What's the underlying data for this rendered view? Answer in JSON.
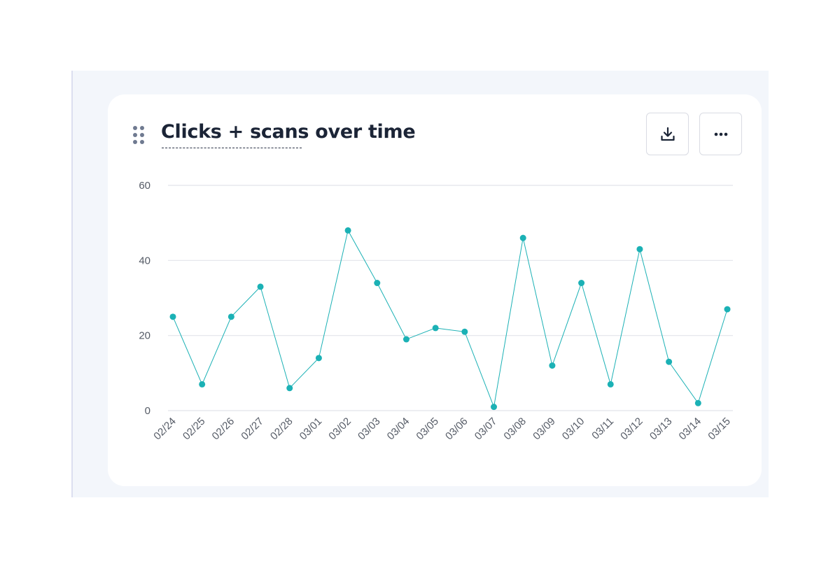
{
  "card": {
    "title": "Clicks + scans over time"
  },
  "toolbar": {
    "download_icon": "download-icon",
    "more_icon": "more-horizontal-icon"
  },
  "colors": {
    "series": "#1bb1b5",
    "title": "#1b2436",
    "grid": "#e2e4ea",
    "background": "#f3f6fb"
  },
  "chart_data": {
    "type": "line",
    "title": "Clicks + scans over time",
    "xlabel": "",
    "ylabel": "",
    "ylim": [
      0,
      60
    ],
    "yticks": [
      0,
      20,
      40,
      60
    ],
    "grid": true,
    "categories": [
      "02/24",
      "02/25",
      "02/26",
      "02/27",
      "02/28",
      "03/01",
      "03/02",
      "03/03",
      "03/04",
      "03/05",
      "03/06",
      "03/07",
      "03/08",
      "03/09",
      "03/10",
      "03/11",
      "03/12",
      "03/13",
      "03/14",
      "03/15"
    ],
    "series": [
      {
        "values": [
          25,
          7,
          25,
          33,
          6,
          14,
          48,
          34,
          19,
          22,
          21,
          1,
          46,
          12,
          34,
          7,
          43,
          13,
          2,
          27
        ]
      }
    ]
  }
}
